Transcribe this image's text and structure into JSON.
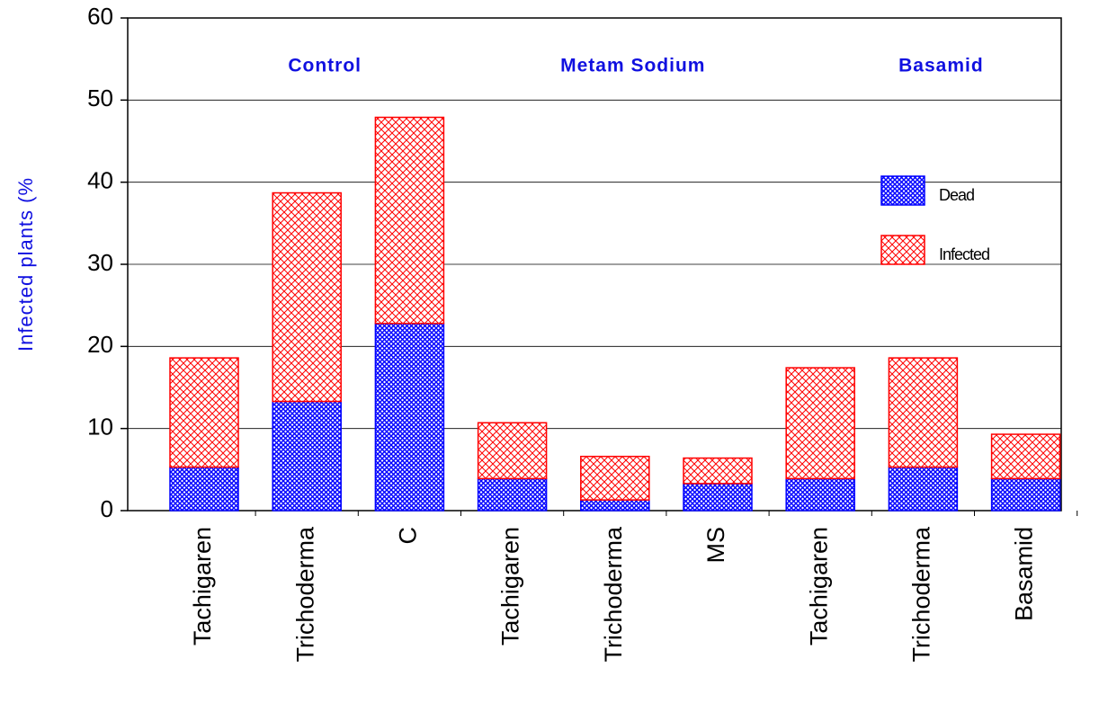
{
  "chart_data": {
    "type": "stacked_bar",
    "ylabel": "Infected plants (%",
    "groups": [
      "Control",
      "Metam Sodium",
      "Basamid"
    ],
    "categories": [
      "Tachigaren",
      "Trichoderma",
      "C",
      "Tachigaren",
      "Trichoderma",
      "MS",
      "Tachigaren",
      "Trichoderma",
      "Basamid"
    ],
    "series": [
      {
        "name": "Dead",
        "color": "#0000ff",
        "values": [
          5.3,
          13.3,
          22.8,
          3.9,
          1.3,
          3.3,
          3.9,
          5.3,
          3.9
        ]
      },
      {
        "name": "Infected",
        "color": "#ff0000",
        "values": [
          13.3,
          25.4,
          25.1,
          6.8,
          5.3,
          3.1,
          13.5,
          13.3,
          5.4
        ]
      }
    ],
    "ylim": [
      0,
      60
    ],
    "yticks": [
      0,
      10,
      20,
      30,
      40,
      50,
      60
    ],
    "grid": true
  }
}
